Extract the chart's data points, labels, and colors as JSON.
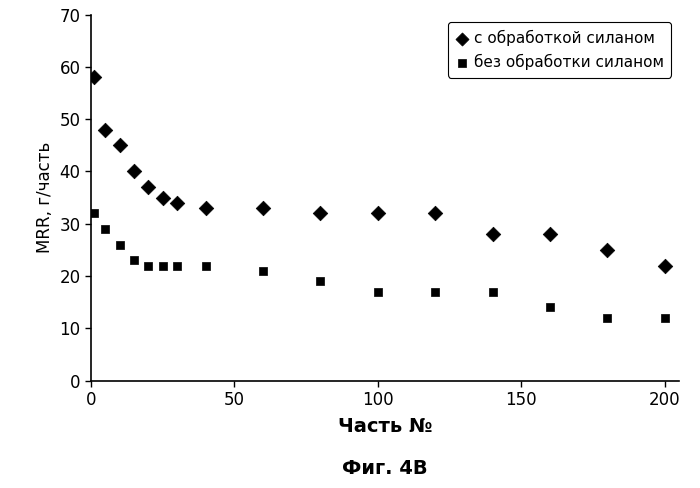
{
  "with_silane_x": [
    1,
    5,
    10,
    15,
    20,
    25,
    30,
    40,
    60,
    80,
    100,
    120,
    140,
    160,
    180,
    200
  ],
  "with_silane_y": [
    58,
    48,
    45,
    40,
    37,
    35,
    34,
    33,
    33,
    32,
    32,
    32,
    28,
    28,
    25,
    22
  ],
  "without_silane_x": [
    1,
    5,
    10,
    15,
    20,
    25,
    30,
    40,
    60,
    80,
    100,
    120,
    140,
    160,
    180,
    200
  ],
  "without_silane_y": [
    32,
    29,
    26,
    23,
    22,
    22,
    22,
    22,
    21,
    19,
    17,
    17,
    17,
    14,
    12,
    12
  ],
  "xlabel": "Часть №",
  "ylabel": "MRR, г/часть",
  "label_with": "с обработкой силаном",
  "label_without": "без обработки силаном",
  "caption": "Фиг. 4В",
  "xlim": [
    0,
    205
  ],
  "ylim": [
    0,
    70
  ],
  "xticks": [
    0,
    50,
    100,
    150,
    200
  ],
  "yticks": [
    0,
    10,
    20,
    30,
    40,
    50,
    60,
    70
  ],
  "marker_color": "#000000",
  "bg_color": "#ffffff",
  "diamond_size": 55,
  "square_size": 35,
  "xlabel_fontsize": 14,
  "ylabel_fontsize": 12,
  "tick_fontsize": 12,
  "legend_fontsize": 11,
  "caption_fontsize": 14
}
